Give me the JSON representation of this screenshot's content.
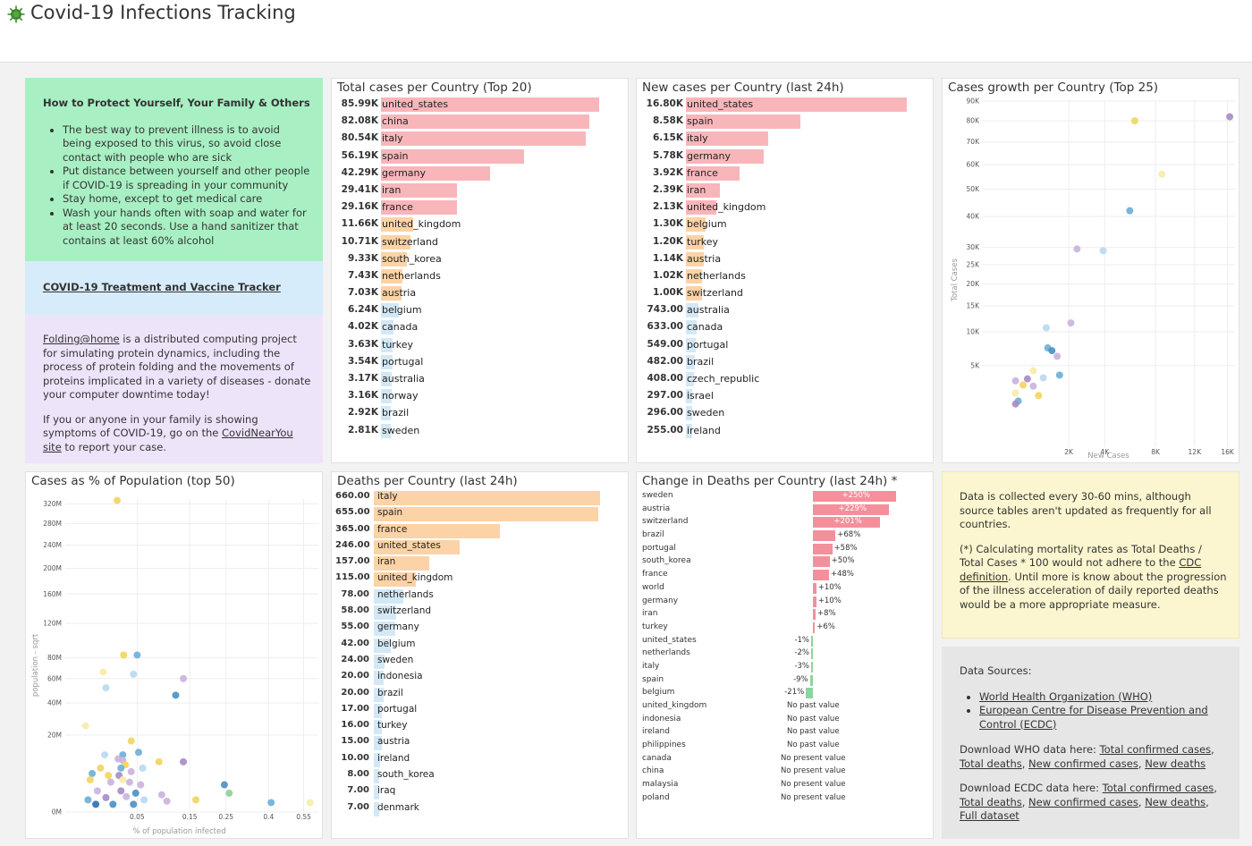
{
  "header": {
    "title": "Covid-19 Infections Tracking"
  },
  "info": {
    "protect_title": "How to Protect Yourself, Your Family & Others",
    "protect_items": [
      "The best way to prevent illness is to avoid being exposed to this virus, so avoid close contact with people who are sick",
      "Put distance between yourself and other people if COVID-19 is spreading in your community",
      "Stay home, except to get medical care",
      "Wash your hands often with soap and water for at least 20 seconds. Use a hand sanitizer that contains at least 60% alcohol"
    ],
    "tracker_link": "COVID-19 Treatment and Vaccine Tracker",
    "folding_link": "Folding@home",
    "folding_text": " is a distributed computing project for simulating protein dynamics, including the process of protein folding and the movements of proteins implicated in a variety of diseases - donate your computer downtime today!",
    "symptoms_pre": "If you or anyone in your family is showing symptoms of COVID-19, go on the ",
    "symptoms_link": "CovidNearYou site",
    "symptoms_post": " to report your case."
  },
  "total_cases": {
    "title": "Total cases per Country (Top 20)",
    "rows": [
      {
        "value": "85.99K",
        "label": "united_states",
        "n": 85.99
      },
      {
        "value": "82.08K",
        "label": "china",
        "n": 82.08
      },
      {
        "value": "80.54K",
        "label": "italy",
        "n": 80.54
      },
      {
        "value": "56.19K",
        "label": "spain",
        "n": 56.19
      },
      {
        "value": "42.29K",
        "label": "germany",
        "n": 42.29
      },
      {
        "value": "29.41K",
        "label": "iran",
        "n": 29.41
      },
      {
        "value": "29.16K",
        "label": "france",
        "n": 29.16
      },
      {
        "value": "11.66K",
        "label": "united_kingdom",
        "n": 11.66
      },
      {
        "value": "10.71K",
        "label": "switzerland",
        "n": 10.71
      },
      {
        "value": "9.33K",
        "label": "south_korea",
        "n": 9.33
      },
      {
        "value": "7.43K",
        "label": "netherlands",
        "n": 7.43
      },
      {
        "value": "7.03K",
        "label": "austria",
        "n": 7.03
      },
      {
        "value": "6.24K",
        "label": "belgium",
        "n": 6.24
      },
      {
        "value": "4.02K",
        "label": "canada",
        "n": 4.02
      },
      {
        "value": "3.63K",
        "label": "turkey",
        "n": 3.63
      },
      {
        "value": "3.54K",
        "label": "portugal",
        "n": 3.54
      },
      {
        "value": "3.17K",
        "label": "australia",
        "n": 3.17
      },
      {
        "value": "3.16K",
        "label": "norway",
        "n": 3.16
      },
      {
        "value": "2.92K",
        "label": "brazil",
        "n": 2.92
      },
      {
        "value": "2.81K",
        "label": "sweden",
        "n": 2.81
      }
    ]
  },
  "new_cases": {
    "title": "New cases per Country (last 24h)",
    "rows": [
      {
        "value": "16.80K",
        "label": "united_states",
        "n": 16800
      },
      {
        "value": "8.58K",
        "label": "spain",
        "n": 8580
      },
      {
        "value": "6.15K",
        "label": "italy",
        "n": 6150
      },
      {
        "value": "5.78K",
        "label": "germany",
        "n": 5780
      },
      {
        "value": "3.92K",
        "label": "france",
        "n": 3920
      },
      {
        "value": "2.39K",
        "label": "iran",
        "n": 2390
      },
      {
        "value": "2.13K",
        "label": "united_kingdom",
        "n": 2130
      },
      {
        "value": "1.30K",
        "label": "belgium",
        "n": 1300
      },
      {
        "value": "1.20K",
        "label": "turkey",
        "n": 1200
      },
      {
        "value": "1.14K",
        "label": "austria",
        "n": 1140
      },
      {
        "value": "1.02K",
        "label": "netherlands",
        "n": 1020
      },
      {
        "value": "1.00K",
        "label": "switzerland",
        "n": 1000
      },
      {
        "value": "743.00",
        "label": "australia",
        "n": 743
      },
      {
        "value": "633.00",
        "label": "canada",
        "n": 633
      },
      {
        "value": "549.00",
        "label": "portugal",
        "n": 549
      },
      {
        "value": "482.00",
        "label": "brazil",
        "n": 482
      },
      {
        "value": "408.00",
        "label": "czech_republic",
        "n": 408
      },
      {
        "value": "297.00",
        "label": "israel",
        "n": 297
      },
      {
        "value": "296.00",
        "label": "sweden",
        "n": 296
      },
      {
        "value": "255.00",
        "label": "ireland",
        "n": 255
      }
    ]
  },
  "deaths": {
    "title": "Deaths per Country (last 24h)",
    "rows": [
      {
        "value": "660.00",
        "label": "italy",
        "n": 660
      },
      {
        "value": "655.00",
        "label": "spain",
        "n": 655
      },
      {
        "value": "365.00",
        "label": "france",
        "n": 365
      },
      {
        "value": "246.00",
        "label": "united_states",
        "n": 246
      },
      {
        "value": "157.00",
        "label": "iran",
        "n": 157
      },
      {
        "value": "115.00",
        "label": "united_kingdom",
        "n": 115
      },
      {
        "value": "78.00",
        "label": "netherlands",
        "n": 78
      },
      {
        "value": "58.00",
        "label": "switzerland",
        "n": 58
      },
      {
        "value": "55.00",
        "label": "germany",
        "n": 55
      },
      {
        "value": "42.00",
        "label": "belgium",
        "n": 42
      },
      {
        "value": "24.00",
        "label": "sweden",
        "n": 24
      },
      {
        "value": "20.00",
        "label": "indonesia",
        "n": 20
      },
      {
        "value": "20.00",
        "label": "brazil",
        "n": 20
      },
      {
        "value": "17.00",
        "label": "portugal",
        "n": 17
      },
      {
        "value": "16.00",
        "label": "turkey",
        "n": 16
      },
      {
        "value": "15.00",
        "label": "austria",
        "n": 15
      },
      {
        "value": "10.00",
        "label": "ireland",
        "n": 10
      },
      {
        "value": "8.00",
        "label": "south_korea",
        "n": 8
      },
      {
        "value": "7.00",
        "label": "iraq",
        "n": 7
      },
      {
        "value": "7.00",
        "label": "denmark",
        "n": 7
      }
    ]
  },
  "change_deaths": {
    "title": "Change in Deaths per Country (last 24h) *",
    "rows": [
      {
        "label": "sweden",
        "pct": 250,
        "text": "+250%"
      },
      {
        "label": "austria",
        "pct": 229,
        "text": "+229%"
      },
      {
        "label": "switzerland",
        "pct": 201,
        "text": "+201%"
      },
      {
        "label": "brazil",
        "pct": 68,
        "text": "+68%"
      },
      {
        "label": "portugal",
        "pct": 58,
        "text": "+58%"
      },
      {
        "label": "south_korea",
        "pct": 50,
        "text": "+50%"
      },
      {
        "label": "france",
        "pct": 48,
        "text": "+48%"
      },
      {
        "label": "world",
        "pct": 10,
        "text": "+10%"
      },
      {
        "label": "germany",
        "pct": 10,
        "text": "+10%"
      },
      {
        "label": "iran",
        "pct": 8,
        "text": "+8%"
      },
      {
        "label": "turkey",
        "pct": 6,
        "text": "+6%"
      },
      {
        "label": "united_states",
        "pct": -1,
        "text": "-1%"
      },
      {
        "label": "netherlands",
        "pct": -2,
        "text": "-2%"
      },
      {
        "label": "italy",
        "pct": -3,
        "text": "-3%"
      },
      {
        "label": "spain",
        "pct": -9,
        "text": "-9%"
      },
      {
        "label": "belgium",
        "pct": -21,
        "text": "-21%"
      },
      {
        "label": "united_kingdom",
        "pct": null,
        "text": "No past value"
      },
      {
        "label": "indonesia",
        "pct": null,
        "text": "No past value"
      },
      {
        "label": "ireland",
        "pct": null,
        "text": "No past value"
      },
      {
        "label": "philippines",
        "pct": null,
        "text": "No past value"
      },
      {
        "label": "canada",
        "pct": null,
        "text": "No present value"
      },
      {
        "label": "china",
        "pct": null,
        "text": "No present value"
      },
      {
        "label": "malaysia",
        "pct": null,
        "text": "No present value"
      },
      {
        "label": "poland",
        "pct": null,
        "text": "No present value"
      }
    ]
  },
  "growth": {
    "title": "Cases growth per Country (Top 25)",
    "xlabel": "New Cases",
    "ylabel": "Total Cases",
    "xticks": [
      "2K",
      "4K",
      "8K",
      "12K",
      "16K"
    ],
    "yticks": [
      "5K",
      "10K",
      "15K",
      "20K",
      "25K",
      "30K",
      "40K",
      "50K",
      "60K",
      "70K",
      "80K",
      "90K"
    ]
  },
  "population": {
    "title": "Cases as % of Population (top 50)",
    "xlabel": "% of population infected",
    "ylabel": "population - sqrt",
    "xticks": [
      "0.05",
      "0.15",
      "0.25",
      "0.4",
      "0.55"
    ],
    "yticks": [
      "0M",
      "20M",
      "40M",
      "60M",
      "80M",
      "120M",
      "160M",
      "200M",
      "240M",
      "280M",
      "320M"
    ]
  },
  "note": {
    "p1": "Data is collected every 30-60 mins, although source tables aren't updated as frequently for all countries.",
    "p2_pre": "(*) Calculating mortality rates as Total Deaths / Total Cases * 100 would not adhere to the ",
    "p2_link": "CDC definition",
    "p2_post": ". Until more is know about the progression of the illness acceleration of daily reported deaths would be a more appropriate measure."
  },
  "sources": {
    "title": "Data Sources:",
    "links": [
      "World Health Organization (WHO)",
      "European Centre for Disease Prevention and Control (ECDC)"
    ],
    "who_pre": "Download WHO data here: ",
    "who_links": [
      "Total confirmed cases",
      "Total deaths",
      "New confirmed cases",
      "New deaths"
    ],
    "ecdc_pre": "Download ECDC data here: ",
    "ecdc_links": [
      "Total confirmed cases",
      "Total deaths",
      "New confirmed cases",
      "New deaths",
      "Full dataset"
    ]
  },
  "chart_data": [
    {
      "type": "scatter",
      "title": "Cases growth per Country (Top 25)",
      "xlabel": "New Cases",
      "ylabel": "Total Cases",
      "xlim": [
        0,
        17000
      ],
      "ylim": [
        0,
        90000
      ],
      "points": [
        {
          "x": 16300,
          "y": 82000,
          "color": "#a58bc4"
        },
        {
          "x": 6200,
          "y": 80000,
          "color": "#f2d45c"
        },
        {
          "x": 8600,
          "y": 56000,
          "color": "#f7eca8"
        },
        {
          "x": 5800,
          "y": 42000,
          "color": "#6baed6"
        },
        {
          "x": 2400,
          "y": 29500,
          "color": "#c9b3de"
        },
        {
          "x": 3900,
          "y": 29000,
          "color": "#b8d9ef"
        },
        {
          "x": 2100,
          "y": 11600,
          "color": "#c9b3de"
        },
        {
          "x": 1100,
          "y": 10700,
          "color": "#b8d9ef"
        },
        {
          "x": 1150,
          "y": 7400,
          "color": "#6baed6"
        },
        {
          "x": 1300,
          "y": 7000,
          "color": "#4a8fc7"
        },
        {
          "x": 1500,
          "y": 6200,
          "color": "#c9b3de"
        },
        {
          "x": 1600,
          "y": 3900,
          "color": "#6baed6"
        },
        {
          "x": 1000,
          "y": 3600,
          "color": "#b8d9ef"
        },
        {
          "x": 550,
          "y": 3500,
          "color": "#a58bc4"
        },
        {
          "x": 700,
          "y": 4400,
          "color": "#f7eca8"
        },
        {
          "x": 300,
          "y": 3300,
          "color": "#c9b3de"
        },
        {
          "x": 450,
          "y": 2900,
          "color": "#f2d45c"
        },
        {
          "x": 700,
          "y": 2800,
          "color": "#c9b3de"
        },
        {
          "x": 300,
          "y": 2200,
          "color": "#f7eca8"
        },
        {
          "x": 850,
          "y": 2000,
          "color": "#f2d45c"
        },
        {
          "x": 350,
          "y": 1600,
          "color": "#6baed6"
        },
        {
          "x": 300,
          "y": 1400,
          "color": "#a58bc4"
        }
      ]
    },
    {
      "type": "scatter",
      "title": "Cases as % of Population (top 50)",
      "xlabel": "% of population infected",
      "ylabel": "population - sqrt",
      "xlim": [
        0,
        0.62
      ],
      "ylim": [
        0,
        330
      ],
      "points": [
        {
          "x": 0.026,
          "y": 327,
          "color": "#f2d45c"
        },
        {
          "x": 0.05,
          "y": 83,
          "color": "#6baed6"
        },
        {
          "x": 0.033,
          "y": 83,
          "color": "#f2d45c"
        },
        {
          "x": 0.014,
          "y": 66,
          "color": "#f7eca8"
        },
        {
          "x": 0.045,
          "y": 64,
          "color": "#b8d9ef"
        },
        {
          "x": 0.135,
          "y": 60,
          "color": "#c9b3de"
        },
        {
          "x": 0.016,
          "y": 52,
          "color": "#b8d9ef"
        },
        {
          "x": 0.118,
          "y": 46,
          "color": "#4a8fc7"
        },
        {
          "x": 0.004,
          "y": 25,
          "color": "#f7eca8"
        },
        {
          "x": 0.042,
          "y": 17,
          "color": "#f2d45c"
        },
        {
          "x": 0.052,
          "y": 12,
          "color": "#6baed6"
        },
        {
          "x": 0.015,
          "y": 11,
          "color": "#b8d9ef"
        },
        {
          "x": 0.032,
          "y": 11,
          "color": "#6baed6"
        },
        {
          "x": 0.027,
          "y": 9.5,
          "color": "#c9b3de"
        },
        {
          "x": 0.032,
          "y": 9.0,
          "color": "#c9b3de"
        },
        {
          "x": 0.085,
          "y": 8.5,
          "color": "#f2d45c"
        },
        {
          "x": 0.135,
          "y": 8.5,
          "color": "#a58bc4"
        },
        {
          "x": 0.035,
          "y": 7.5,
          "color": "#f2d45c"
        },
        {
          "x": 0.012,
          "y": 6.5,
          "color": "#f2d45c"
        },
        {
          "x": 0.03,
          "y": 6.5,
          "color": "#6baed6"
        },
        {
          "x": 0.058,
          "y": 6.5,
          "color": "#b8d9ef"
        },
        {
          "x": 0.042,
          "y": 5.5,
          "color": "#c9b3de"
        },
        {
          "x": 0.007,
          "y": 5.0,
          "color": "#6baed6"
        },
        {
          "x": 0.018,
          "y": 4.5,
          "color": "#f2d45c"
        },
        {
          "x": 0.028,
          "y": 4.5,
          "color": "#a58bc4"
        },
        {
          "x": 0.006,
          "y": 3.5,
          "color": "#f2d45c"
        },
        {
          "x": 0.032,
          "y": 3.5,
          "color": "#f7eca8"
        },
        {
          "x": 0.02,
          "y": 3.0,
          "color": "#c9b3de"
        },
        {
          "x": 0.04,
          "y": 3.0,
          "color": "#c9b3de"
        },
        {
          "x": 0.055,
          "y": 2.5,
          "color": "#c9b3de"
        },
        {
          "x": 0.245,
          "y": 2.5,
          "color": "#4a8fc7"
        },
        {
          "x": 0.01,
          "y": 1.5,
          "color": "#c9b3de"
        },
        {
          "x": 0.03,
          "y": 1.5,
          "color": "#a58bc4"
        },
        {
          "x": 0.048,
          "y": 1.2,
          "color": "#4a8fc7"
        },
        {
          "x": 0.09,
          "y": 1.0,
          "color": "#c9b3de"
        },
        {
          "x": 0.26,
          "y": 1.2,
          "color": "#8fcf9b"
        },
        {
          "x": 0.036,
          "y": 0.8,
          "color": "#c9b3de"
        },
        {
          "x": 0.016,
          "y": 0.7,
          "color": "#a58bc4"
        },
        {
          "x": 0.005,
          "y": 0.5,
          "color": "#6baed6"
        },
        {
          "x": 0.06,
          "y": 0.5,
          "color": "#b8d9ef"
        },
        {
          "x": 0.165,
          "y": 0.5,
          "color": "#f2d45c"
        },
        {
          "x": 0.1,
          "y": 0.4,
          "color": "#c9b3de"
        },
        {
          "x": 0.41,
          "y": 0.3,
          "color": "#6baed6"
        },
        {
          "x": 0.58,
          "y": 0.3,
          "color": "#f7eca8"
        },
        {
          "x": 0.022,
          "y": 0.2,
          "color": "#4a8fc7"
        },
        {
          "x": 0.009,
          "y": 0.2,
          "color": "#2f6fb0"
        },
        {
          "x": 0.045,
          "y": 0.2,
          "color": "#4a8fc7"
        }
      ]
    }
  ],
  "colors": {
    "pink": "#f8b6bb",
    "orange": "#fcd3a6",
    "blue": "#d3e8f6",
    "green": "#a8f0c3",
    "lightblue": "#d6ecfa",
    "lavender": "#eee4fa",
    "yellow": "#fbf6cf",
    "gray": "#e6e6e6",
    "positive": "#f48f9c",
    "negative": "#8fd49c"
  }
}
